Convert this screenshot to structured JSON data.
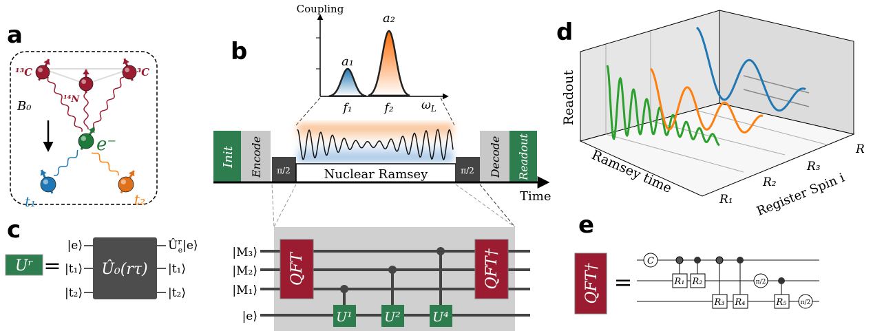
{
  "panel_labels": [
    "a",
    "b",
    "c",
    "d",
    "e"
  ],
  "panel_a": {
    "carbon_left": "¹³C",
    "nitrogen": "¹⁴N",
    "carbon_right": "¹³C",
    "field": "B₀",
    "electron": "e⁻",
    "target_1": "t₁",
    "target_2": "t₂"
  },
  "panel_b": {
    "plot": {
      "y_label": "Coupling",
      "peak_1": "a₁",
      "peak_2": "a₂",
      "tick_1": "f₁",
      "tick_2": "f₂",
      "x_label": {
        "base": "ω",
        "sub": "L"
      }
    },
    "sequence": {
      "init": "Init",
      "encode": "Encode",
      "pulse_1": "π/2",
      "ramsey": "Nuclear Ramsey",
      "pulse_2": "π/2",
      "decode": "Decode",
      "readout": "Readout"
    },
    "time_label": "Time"
  },
  "panel_c": {
    "unitary": "Uʳ",
    "equals": "=",
    "inputs": [
      "|e⟩",
      "|t₁⟩",
      "|t₂⟩"
    ],
    "gate": "Û₀(rτ)",
    "outputs": [
      {
        "base": "Û",
        "sub": "e",
        "sup": "r",
        "rest": "|e⟩"
      },
      "|t₁⟩",
      "|t₂⟩"
    ],
    "circuit": {
      "wires": [
        "|M₃⟩",
        "|M₂⟩",
        "|M₁⟩",
        "|e⟩"
      ],
      "qft": "QFT",
      "controlled": [
        "U¹",
        "U²",
        "U⁴"
      ],
      "qft_dagger": "QFT†"
    }
  },
  "panel_d": {
    "y_label": "Readout",
    "x_label": "Ramsey time",
    "z_label": "Register Spin i",
    "z_axis": "R",
    "z_ticks": [
      "R₁",
      "R₂",
      "R₃"
    ]
  },
  "panel_e": {
    "gate": "QFT†",
    "equals": "=",
    "c_gate": "C",
    "rotations": [
      "R₁",
      "R₂",
      "R₃",
      "R₄",
      "R₅"
    ],
    "phase_gates": [
      "π/2",
      "π/2"
    ]
  }
}
